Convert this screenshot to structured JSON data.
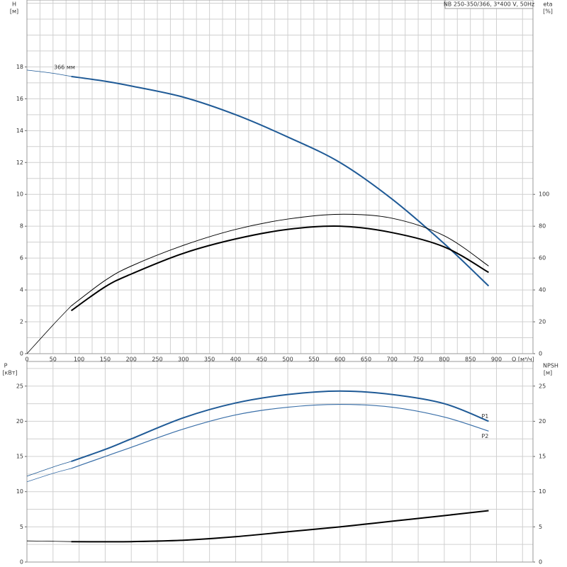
{
  "chart_data": [
    {
      "type": "line",
      "title": "NB 250-350/366, 3*400 V, 50Hz",
      "y_label": "H",
      "y_unit": "[м]",
      "y2_label": "eta",
      "y2_unit": "[%]",
      "x_label": "Q [м³/ч]",
      "annotation": "366 мм",
      "x": [
        0,
        50,
        85,
        150,
        200,
        300,
        400,
        500,
        600,
        700,
        800,
        885
      ],
      "xlim": [
        0,
        970
      ],
      "xticks": [
        0,
        50,
        100,
        150,
        200,
        250,
        300,
        350,
        400,
        450,
        500,
        550,
        600,
        650,
        700,
        750,
        800,
        850,
        900
      ],
      "ylim": [
        0,
        22.2
      ],
      "yticks": [
        0,
        2,
        4,
        6,
        8,
        10,
        12,
        14,
        16,
        18
      ],
      "ygrid_step": 1,
      "y2lim": [
        0,
        222
      ],
      "y2ticks": [
        0,
        20,
        40,
        60,
        80,
        100
      ],
      "series": [
        {
          "color": "#1f5a96",
          "width": 2,
          "values": [
            17.8,
            17.6,
            17.4,
            17.1,
            16.8,
            16.1,
            15.0,
            13.6,
            12.0,
            9.7,
            6.9,
            4.25
          ]
        },
        {
          "color": "#000000",
          "width": 1,
          "axis": "y2",
          "values": [
            0,
            18,
            30,
            46,
            55,
            68,
            78,
            84.5,
            87.5,
            85,
            74,
            55
          ]
        },
        {
          "color": "#000000",
          "width": 2,
          "axis": "y2",
          "values": [
            null,
            null,
            27,
            42,
            50,
            63,
            72,
            78,
            80,
            76,
            67,
            51
          ]
        }
      ]
    },
    {
      "type": "line",
      "y_label": "P",
      "y_unit": "[кВт]",
      "y2_label": "NPSH",
      "y2_unit": "[м]",
      "x": [
        0,
        50,
        85,
        150,
        200,
        300,
        400,
        500,
        600,
        700,
        800,
        885
      ],
      "xlim": [
        0,
        970
      ],
      "ylim": [
        0,
        28.5
      ],
      "yticks": [
        0,
        5,
        10,
        15,
        20,
        25
      ],
      "ygrid_step": 2.5,
      "y2lim": [
        0,
        28.5
      ],
      "y2ticks": [
        0,
        5,
        10,
        15,
        20,
        25
      ],
      "series": [
        {
          "name": "P1",
          "color": "#1f5a96",
          "width": 2,
          "values": [
            12.2,
            13.5,
            14.3,
            16.0,
            17.5,
            20.5,
            22.6,
            23.8,
            24.3,
            23.8,
            22.5,
            20.0
          ]
        },
        {
          "name": "P2",
          "color": "#3a6fa8",
          "width": 1.2,
          "values": [
            11.4,
            12.6,
            13.3,
            15.0,
            16.3,
            18.9,
            20.9,
            22.0,
            22.4,
            22.0,
            20.6,
            18.6
          ]
        },
        {
          "color": "#000000",
          "width": 2,
          "axis": "y2",
          "values": [
            3.0,
            2.95,
            2.9,
            2.88,
            2.9,
            3.1,
            3.6,
            4.3,
            5.0,
            5.8,
            6.6,
            7.3
          ]
        }
      ]
    }
  ]
}
